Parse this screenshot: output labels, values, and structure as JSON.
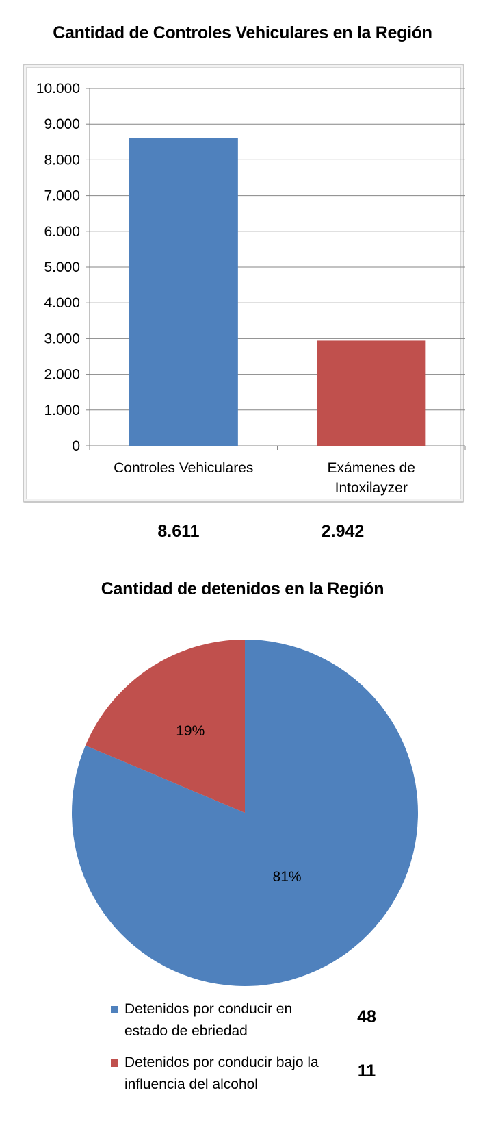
{
  "titles": {
    "bar_chart": "Cantidad de Controles Vehiculares en la Región",
    "pie_chart": "Cantidad de detenidos en la Región"
  },
  "colors": {
    "blue": "#4f81bd",
    "red": "#c0504d",
    "grid": "#868686"
  },
  "chart_data": [
    {
      "type": "bar",
      "title": "Cantidad de Controles Vehiculares en la Región",
      "categories": [
        "Controles Vehiculares",
        "Exámenes de Intoxilayzer"
      ],
      "category_lines": [
        [
          "Controles Vehiculares"
        ],
        [
          "Exámenes de",
          "Intoxilayzer"
        ]
      ],
      "values": [
        8611,
        2942
      ],
      "value_labels": [
        "8.611",
        "2.942"
      ],
      "bar_colors": [
        "#4f81bd",
        "#c0504d"
      ],
      "ylim": [
        0,
        10000
      ],
      "yticks": [
        0,
        1000,
        2000,
        3000,
        4000,
        5000,
        6000,
        7000,
        8000,
        9000,
        10000
      ],
      "ytick_labels": [
        "0",
        "1.000",
        "2.000",
        "3.000",
        "4.000",
        "5.000",
        "6.000",
        "7.000",
        "8.000",
        "9.000",
        "10.000"
      ],
      "grid": true,
      "legend": "none"
    },
    {
      "type": "pie",
      "title": "Cantidad de detenidos en la Región",
      "slices": [
        {
          "label": "Detenidos por conducir en estado de ebriedad",
          "label_lines": [
            "Detenidos por conducir en",
            "estado de ebriedad"
          ],
          "value": 48,
          "percent_label": "81%",
          "color": "#4f81bd"
        },
        {
          "label": "Detenidos por conducir bajo la influencia del alcohol",
          "label_lines": [
            "Detenidos por conducir bajo la",
            "influencia del alcohol"
          ],
          "value": 11,
          "percent_label": "19%",
          "color": "#c0504d"
        }
      ],
      "legend": "bottom"
    }
  ]
}
